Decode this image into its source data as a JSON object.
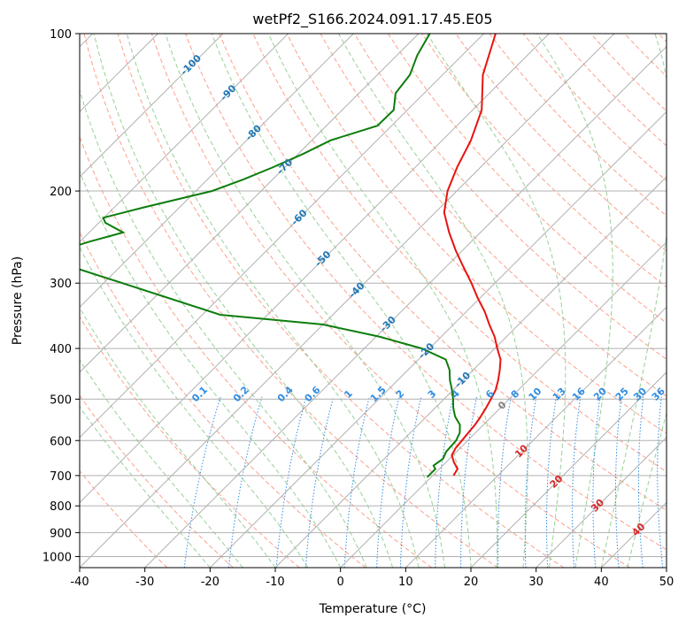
{
  "chart_data": {
    "type": "line",
    "title": "wetPf2_S166.2024.091.17.45.E05",
    "xlabel": "Temperature (°C)",
    "ylabel": "Pressure (hPa)",
    "xlim": [
      -40,
      50
    ],
    "ylim": [
      1050,
      100
    ],
    "y_scale": "log",
    "grid": true,
    "x_ticks": [
      "-40",
      "-30",
      "-20",
      "-10",
      "0",
      "10",
      "20",
      "30",
      "40",
      "50"
    ],
    "x_tick_values": [
      -40,
      -30,
      -20,
      -10,
      0,
      10,
      20,
      30,
      40,
      50
    ],
    "y_ticks": [
      "100",
      "200",
      "300",
      "400",
      "500",
      "600",
      "700",
      "800",
      "900",
      "1000"
    ],
    "y_tick_values": [
      100,
      200,
      300,
      400,
      500,
      600,
      700,
      800,
      900,
      1000
    ],
    "skew_degrees": 45,
    "colors": {
      "temperature": "#e8130f",
      "dewpoint": "#0c7d0c",
      "isotherm_labels": "#1f77b4",
      "mixing_ratio": "#2f8de4",
      "dry_adiabats": "#fca08a",
      "moist_adiabats": "#98d098",
      "moist_labels": "#d62728"
    },
    "series": [
      {
        "name": "",
        "color": "#e8130f",
        "points": [
          [
            700,
            3.2
          ],
          [
            680,
            2.8
          ],
          [
            660,
            1.2
          ],
          [
            640,
            -0.2
          ],
          [
            620,
            -0.7
          ],
          [
            600,
            -0.9
          ],
          [
            580,
            -1.1
          ],
          [
            560,
            -1.3
          ],
          [
            540,
            -1.7
          ],
          [
            520,
            -2.2
          ],
          [
            500,
            -2.8
          ],
          [
            480,
            -3.5
          ],
          [
            460,
            -4.6
          ],
          [
            440,
            -5.9
          ],
          [
            420,
            -7.4
          ],
          [
            400,
            -9.6
          ],
          [
            380,
            -11.8
          ],
          [
            360,
            -14.5
          ],
          [
            340,
            -17.2
          ],
          [
            320,
            -20.4
          ],
          [
            300,
            -23.6
          ],
          [
            280,
            -27.2
          ],
          [
            260,
            -31.0
          ],
          [
            240,
            -34.8
          ],
          [
            220,
            -38.6
          ],
          [
            200,
            -41.4
          ],
          [
            180,
            -43.6
          ],
          [
            160,
            -45.6
          ],
          [
            140,
            -48.6
          ],
          [
            120,
            -53.8
          ],
          [
            100,
            -58.2
          ]
        ]
      },
      {
        "name": "",
        "color": "#0c7d0c",
        "points": [
          [
            705,
            -0.6
          ],
          [
            680,
            -0.6
          ],
          [
            670,
            -1.4
          ],
          [
            650,
            -1.0
          ],
          [
            630,
            -1.6
          ],
          [
            600,
            -1.8
          ],
          [
            580,
            -2.4
          ],
          [
            560,
            -3.6
          ],
          [
            540,
            -5.6
          ],
          [
            520,
            -7.2
          ],
          [
            500,
            -8.6
          ],
          [
            480,
            -10.2
          ],
          [
            460,
            -12.0
          ],
          [
            440,
            -13.6
          ],
          [
            420,
            -15.8
          ],
          [
            400,
            -21.2
          ],
          [
            380,
            -29.4
          ],
          [
            360,
            -40.0
          ],
          [
            345,
            -57.2
          ],
          [
            270,
            -92.2
          ],
          [
            255,
            -90.1
          ],
          [
            250,
            -88.6
          ],
          [
            240,
            -84.8
          ],
          [
            230,
            -89.0
          ],
          [
            225,
            -90.1
          ],
          [
            215,
            -85.5
          ],
          [
            200,
            -77.5
          ],
          [
            190,
            -74.5
          ],
          [
            180,
            -71.8
          ],
          [
            170,
            -69.3
          ],
          [
            160,
            -67.1
          ],
          [
            150,
            -62.2
          ],
          [
            140,
            -62.1
          ],
          [
            130,
            -64.4
          ],
          [
            120,
            -65.0
          ],
          [
            110,
            -66.9
          ],
          [
            100,
            -68.3
          ]
        ]
      }
    ],
    "isotherm_labels": [
      "-100",
      "-90",
      "-80",
      "-70",
      "-60",
      "-50",
      "-40",
      "-30",
      "-20",
      "-10",
      "0"
    ],
    "isotherm_label_values": [
      -100,
      -90,
      -80,
      -70,
      -60,
      -50,
      -40,
      -30,
      -20,
      -10,
      0
    ],
    "isotherm_label_pressures": [
      115,
      130,
      155,
      180,
      225,
      270,
      310,
      360,
      405,
      460,
      515
    ],
    "mixing_ratio_labels": [
      "0.1",
      "0.2",
      "0.4",
      "0.6",
      "1",
      "1.5",
      "2",
      "3",
      "4",
      "6",
      "8",
      "10",
      "13",
      "16",
      "20",
      "25",
      "30",
      "36"
    ],
    "mixing_ratio_values": [
      0.1,
      0.2,
      0.4,
      0.6,
      1,
      1.5,
      2,
      3,
      4,
      6,
      8,
      10,
      13,
      16,
      20,
      25,
      30,
      36
    ],
    "moist_adiabat_labels": [
      "10",
      "20",
      "30",
      "40"
    ],
    "moist_adiabat_values": [
      10,
      20,
      30,
      40
    ]
  }
}
